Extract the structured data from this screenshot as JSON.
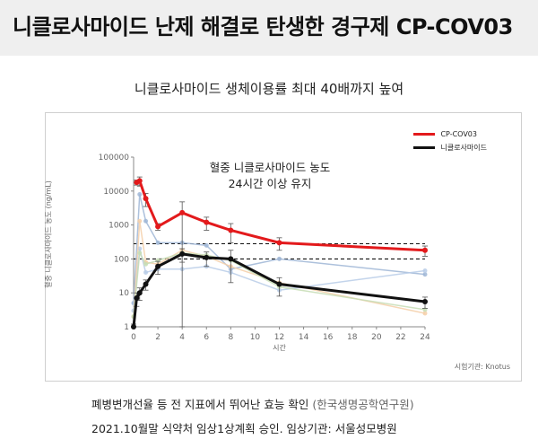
{
  "header": {
    "title": "니클로사마이드 난제 해결로 탄생한 경구제 CP-COV03"
  },
  "subtitle": "니클로사마이드 생체이용률 최대 40배까지 높여",
  "annotation": {
    "line1": "혈중 니클로사마이드 농도",
    "line2": "24시간 이상 유지"
  },
  "source": "시험기관: Knotus",
  "footer": {
    "line1_main": "폐병변개선율 등 전 지표에서 뛰어난 효능 확인",
    "line1_note": "(한국생명공학연구원)",
    "line2": "2021.10월말 식약처 임상1상계획 승인. 임상기관: 서울성모병원"
  },
  "chart_data": {
    "type": "line",
    "xlabel": "시간",
    "ylabel": "혈중 니클로사마이드 농도 (ng/mL)",
    "yscale": "log",
    "xlim": [
      0,
      24
    ],
    "ylim": [
      1,
      100000
    ],
    "xticks": [
      0,
      2,
      4,
      6,
      8,
      10,
      12,
      14,
      16,
      18,
      20,
      22,
      24
    ],
    "yticks": [
      {
        "value": 1,
        "label": "1"
      },
      {
        "value": 10,
        "label": "10"
      },
      {
        "value": 100,
        "label": "100"
      },
      {
        "value": 1000,
        "label": "1000"
      },
      {
        "value": 10000,
        "label": "10000"
      },
      {
        "value": 100000,
        "label": "100000"
      }
    ],
    "reference_lines": [
      280,
      100
    ],
    "series": [
      {
        "name": "CP-COV03",
        "color": "#e31a1c",
        "x": [
          0.25,
          0.5,
          1,
          2,
          4,
          6,
          8,
          12,
          24
        ],
        "y": [
          18000,
          20000,
          6000,
          900,
          2300,
          1200,
          700,
          300,
          180
        ],
        "err": [
          3000,
          6000,
          2500,
          200,
          2500,
          500,
          400,
          120,
          60
        ]
      },
      {
        "name": "니클로사마이드",
        "color": "#111111",
        "x": [
          0,
          0.25,
          0.5,
          1,
          2,
          4,
          6,
          8,
          12,
          24
        ],
        "y": [
          1,
          7,
          10,
          18,
          60,
          140,
          110,
          100,
          18,
          5.5
        ],
        "err": [
          0.2,
          3,
          4,
          6,
          25,
          60,
          50,
          80,
          10,
          2
        ]
      }
    ],
    "faint_series": [
      {
        "color": "#9fb6d6",
        "x": [
          0,
          0.5,
          1,
          2,
          4,
          6,
          8,
          12,
          24
        ],
        "y": [
          5,
          8000,
          1300,
          300,
          300,
          250,
          50,
          100,
          35
        ]
      },
      {
        "color": "#b8cde8",
        "x": [
          0,
          0.5,
          1,
          2,
          4,
          6,
          8,
          12,
          24
        ],
        "y": [
          3,
          200,
          40,
          50,
          50,
          60,
          40,
          12,
          45
        ]
      },
      {
        "color": "#f5cfa8",
        "x": [
          0,
          0.5,
          1,
          2,
          4,
          6,
          8,
          12,
          24
        ],
        "y": [
          2,
          1300,
          80,
          70,
          180,
          120,
          60,
          20,
          2.5
        ]
      },
      {
        "color": "#c7ddb5",
        "x": [
          0,
          0.5,
          1,
          2,
          4,
          6,
          8,
          12,
          24
        ],
        "y": [
          2,
          150,
          70,
          90,
          150,
          130,
          90,
          15,
          3.2
        ]
      }
    ]
  }
}
